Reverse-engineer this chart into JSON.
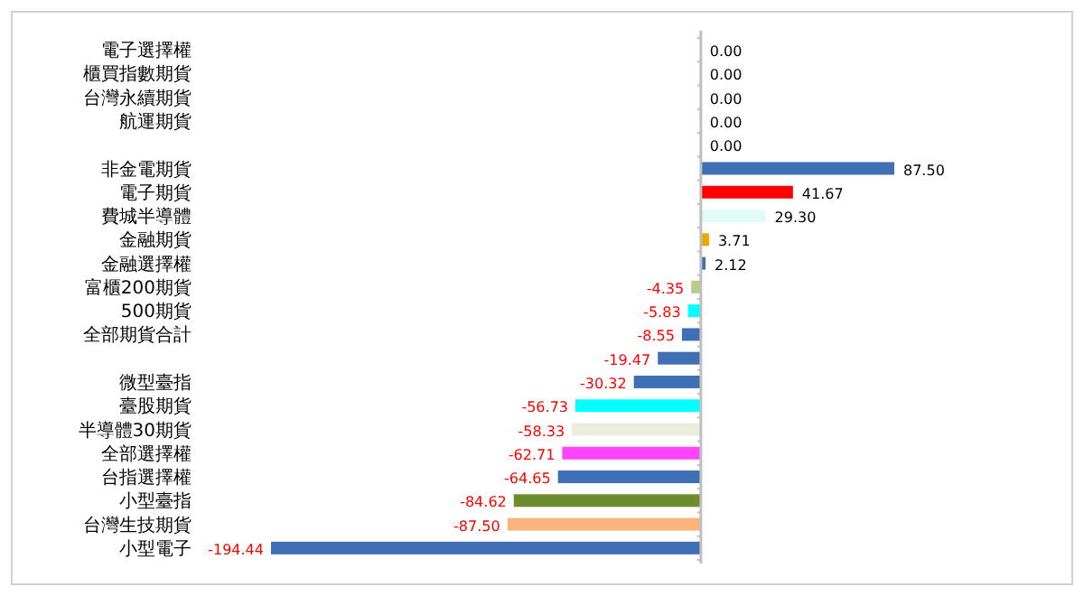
{
  "chart_data": {
    "type": "bar",
    "orientation": "horizontal",
    "categories": [
      "電子選擇權",
      "櫃買指數期貨",
      "台灣永續期貨",
      "航運期貨",
      null,
      "非金電期貨",
      "電子期貨",
      "費城半導體",
      "金融期貨",
      "金融選擇權",
      "富櫃200期貨",
      "500期貨",
      "全部期貨合計",
      null,
      "微型臺指",
      "臺股期貨",
      "半導體30期貨",
      "全部選擇權",
      "台指選擇權",
      "小型臺指",
      "台灣生技期貨",
      "小型電子"
    ],
    "values": [
      0,
      0,
      0,
      0,
      0,
      87.5,
      41.67,
      29.3,
      3.71,
      2.12,
      -4.35,
      -5.83,
      -8.55,
      -19.47,
      -30.32,
      -56.73,
      -58.33,
      -62.71,
      -64.65,
      -84.62,
      -87.5,
      -194.44
    ],
    "colors": [
      "#3f6fb5",
      "#3f6fb5",
      "#3f6fb5",
      "#3f6fb5",
      "#3f6fb5",
      "#3f6fb5",
      "#ff0000",
      "#dffdf6",
      "#e8a800",
      "#3f6fb5",
      "#b5cf8a",
      "#00ffff",
      "#3f6fb5",
      "#3f6fb5",
      "#3f6fb5",
      "#00ffff",
      "#e9efdc",
      "#ff44ff",
      "#3f6fb5",
      "#6e8b2e",
      "#fab47c",
      "#3f6fb5"
    ],
    "value_labels": [
      "0.00",
      "0.00",
      "0.00",
      "0.00",
      "0.00",
      "87.50",
      "41.67",
      "29.30",
      "3.71",
      "2.12",
      "-4.35",
      "-5.83",
      "-8.55",
      "-19.47",
      "-30.32",
      "-56.73",
      "-58.33",
      "-62.71",
      "-64.65",
      "-84.62",
      "-87.50",
      "-194.44"
    ]
  }
}
